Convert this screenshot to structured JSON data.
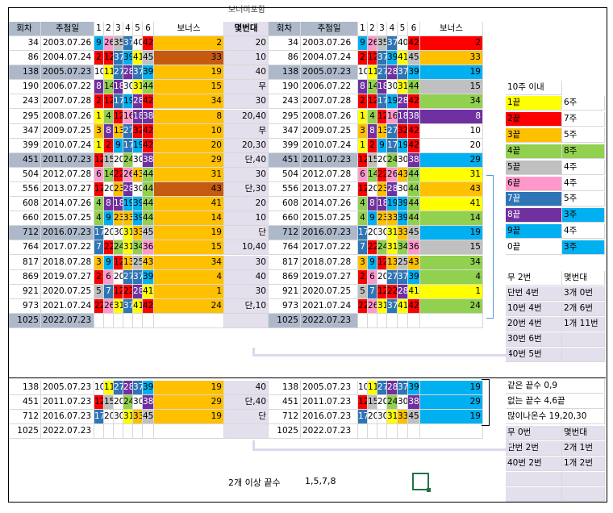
{
  "header_note": "보너미포함",
  "cols": {
    "round": "회차",
    "date": "추첨일",
    "n1": "1",
    "n2": "2",
    "n3": "3",
    "n4": "4",
    "n5": "5",
    "n6": "6",
    "bonus": "보너스",
    "gap": "몇번대"
  },
  "table1": [
    {
      "round": "34",
      "date": "2003.07.26",
      "n": [
        "9",
        "26",
        "35",
        "37",
        "40",
        "42"
      ],
      "b": "2",
      "g": "20"
    },
    {
      "round": "86",
      "date": "2004.07.24",
      "n": [
        "2",
        "12",
        "37",
        "39",
        "41",
        "45"
      ],
      "b": "33",
      "g": "10"
    },
    {
      "round": "138",
      "date": "2005.07.23",
      "n": [
        "10",
        "11",
        "27",
        "28",
        "37",
        "39"
      ],
      "b": "19",
      "g": "40",
      "hl": true
    },
    {
      "round": "190",
      "date": "2006.07.22",
      "n": [
        "8",
        "14",
        "18",
        "30",
        "31",
        "44"
      ],
      "b": "15",
      "g": "무"
    },
    {
      "round": "243",
      "date": "2007.07.28",
      "n": [
        "2",
        "12",
        "17",
        "19",
        "28",
        "42"
      ],
      "b": "34",
      "g": "30"
    },
    {
      "round": "295",
      "date": "2008.07.26",
      "n": [
        "1",
        "4",
        "12",
        "16",
        "18",
        "38"
      ],
      "b": "8",
      "g": "20,40"
    },
    {
      "round": "347",
      "date": "2009.07.25",
      "n": [
        "3",
        "8",
        "13",
        "27",
        "32",
        "42"
      ],
      "b": "10",
      "g": "무"
    },
    {
      "round": "399",
      "date": "2010.07.24",
      "n": [
        "1",
        "2",
        "9",
        "17",
        "19",
        "42"
      ],
      "b": "20",
      "g": "20,30"
    },
    {
      "round": "451",
      "date": "2011.07.23",
      "n": [
        "12",
        "15",
        "20",
        "24",
        "30",
        "38"
      ],
      "b": "29",
      "g": "단,40",
      "hl": true
    },
    {
      "round": "504",
      "date": "2012.07.28",
      "n": [
        "6",
        "14",
        "22",
        "26",
        "43",
        "44"
      ],
      "b": "31",
      "g": "30"
    },
    {
      "round": "556",
      "date": "2013.07.27",
      "n": [
        "12",
        "20",
        "23",
        "28",
        "30",
        "44"
      ],
      "b": "43",
      "g": "단,30"
    },
    {
      "round": "608",
      "date": "2014.07.26",
      "n": [
        "4",
        "8",
        "18",
        "19",
        "39",
        "44"
      ],
      "b": "41",
      "g": "20"
    },
    {
      "round": "660",
      "date": "2015.07.25",
      "n": [
        "4",
        "9",
        "23",
        "33",
        "39",
        "44"
      ],
      "b": "14",
      "g": "10"
    },
    {
      "round": "712",
      "date": "2016.07.23",
      "n": [
        "17",
        "20",
        "30",
        "31",
        "33",
        "45"
      ],
      "b": "19",
      "g": "단",
      "hl": true
    },
    {
      "round": "764",
      "date": "2017.07.22",
      "n": [
        "7",
        "22",
        "24",
        "31",
        "34",
        "36"
      ],
      "b": "15",
      "g": "10,40"
    },
    {
      "round": "817",
      "date": "2018.07.28",
      "n": [
        "3",
        "9",
        "12",
        "13",
        "25",
        "43"
      ],
      "b": "34",
      "g": "30"
    },
    {
      "round": "869",
      "date": "2019.07.27",
      "n": [
        "2",
        "6",
        "20",
        "27",
        "37",
        "39"
      ],
      "b": "4",
      "g": "40"
    },
    {
      "round": "921",
      "date": "2020.07.25",
      "n": [
        "5",
        "7",
        "12",
        "22",
        "28",
        "41"
      ],
      "b": "1",
      "g": "30"
    },
    {
      "round": "973",
      "date": "2021.07.24",
      "n": [
        "22",
        "26",
        "31",
        "37",
        "41",
        "42"
      ],
      "b": "24",
      "g": "단,10"
    },
    {
      "round": "1025",
      "date": "2022.07.23",
      "n": [
        "",
        "",
        "",
        "",
        "",
        ""
      ],
      "b": "",
      "g": "",
      "hl": true
    }
  ],
  "table2": [
    {
      "round": "138",
      "date": "2005.07.23",
      "n": [
        "10",
        "11",
        "27",
        "28",
        "37",
        "39"
      ],
      "b": "19",
      "g": "40"
    },
    {
      "round": "451",
      "date": "2011.07.23",
      "n": [
        "12",
        "15",
        "20",
        "24",
        "30",
        "38"
      ],
      "b": "29",
      "g": "단,40"
    },
    {
      "round": "712",
      "date": "2016.07.23",
      "n": [
        "17",
        "20",
        "30",
        "31",
        "33",
        "45"
      ],
      "b": "19",
      "g": "단"
    },
    {
      "round": "1025",
      "date": "2022.07.23",
      "n": [
        "",
        "",
        "",
        "",
        "",
        ""
      ],
      "b": "",
      "g": ""
    }
  ],
  "legend": {
    "title": "10주 이내",
    "rows": [
      [
        "1끝",
        "6주"
      ],
      [
        "2끝",
        "7주"
      ],
      [
        "3끝",
        "5주"
      ],
      [
        "4끝",
        "8주"
      ],
      [
        "5끝",
        "4주"
      ],
      [
        "6끝",
        "4주"
      ],
      [
        "7끝",
        "5주"
      ],
      [
        "8끝",
        "3주"
      ],
      [
        "9끝",
        "4주"
      ],
      [
        "0끝",
        "3주"
      ]
    ]
  },
  "stats1": {
    "head": [
      "무 2번",
      "몇번대"
    ],
    "rows": [
      [
        "단번 4번",
        "3개 0번"
      ],
      [
        "10번 4번",
        "2개 6번"
      ],
      [
        "20번 4번",
        "1개 11번"
      ],
      [
        "30번 6번",
        ""
      ],
      [
        "40번 5번",
        ""
      ]
    ]
  },
  "notes": {
    "same_end": "같은 끝수 0,9",
    "no_end": "없는 끝수 4,6끝",
    "frequent": "많이나온수 19,20,30"
  },
  "stats2": {
    "head": [
      "무 0번",
      "몇번대"
    ],
    "rows": [
      [
        "단번 2번",
        "2개 1번"
      ],
      [
        "40번 2번",
        "1개 2번"
      ],
      [
        "",
        ""
      ],
      [
        "",
        ""
      ]
    ]
  },
  "footer": {
    "label": "2개 이상 끝수",
    "value": "1,5,7,8"
  },
  "colors": {
    "e1": "#ffff00",
    "e2": "#ff0000",
    "e3": "#ffc000",
    "e4": "#92d050",
    "e5": "#c0c0c0",
    "e6": "#ff99cc",
    "e7": "#2e75b6",
    "e8": "#7030a0",
    "e9": "#00b0f0",
    "e0": "#ffffff",
    "hl": "#adb9ca",
    "gap": "#e4dfec",
    "bonus_alt": "#c55a11"
  }
}
